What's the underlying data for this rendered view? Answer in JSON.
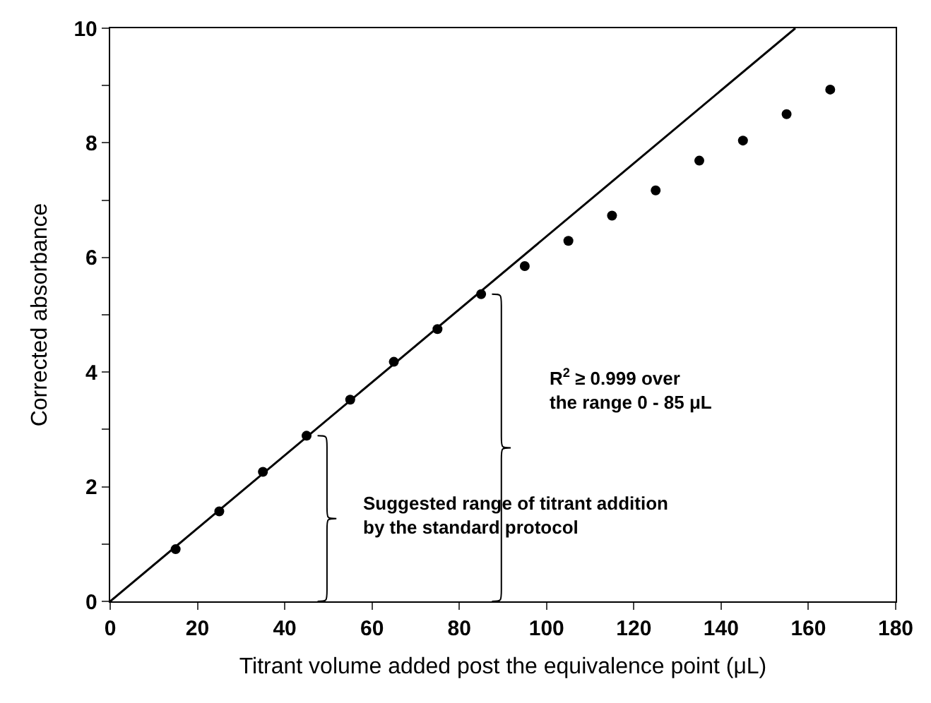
{
  "chart_data": {
    "type": "scatter",
    "xlabel": "Titrant volume added post the equivalence point (μL)",
    "ylabel": "Corrected absorbance",
    "xlim": [
      0,
      180
    ],
    "xticks": [
      0,
      20,
      40,
      60,
      80,
      100,
      120,
      140,
      160,
      180
    ],
    "ylim": [
      0,
      10
    ],
    "yticks": [
      0,
      {
        "value": 1,
        "label": null
      },
      2,
      {
        "value": 3,
        "label": null
      },
      4,
      {
        "value": 5,
        "label": null
      },
      6,
      {
        "value": 7,
        "label": null
      },
      8,
      {
        "value": 9,
        "label": null
      },
      10
    ],
    "grid": false,
    "legend": false,
    "series": [
      {
        "color": "#000000",
        "marker": "circle",
        "x": [
          15,
          25,
          35,
          45,
          55,
          65,
          75,
          85,
          95,
          105,
          115,
          125,
          135,
          145,
          155,
          165
        ],
        "values": [
          0.91,
          1.57,
          2.26,
          2.89,
          3.52,
          4.18,
          4.75,
          5.36,
          5.85,
          6.29,
          6.73,
          7.17,
          7.69,
          8.04,
          8.5,
          8.93
        ]
      },
      {
        "type": "line",
        "color": "#000000",
        "x": [
          0,
          157
        ],
        "values": [
          0,
          10
        ]
      }
    ],
    "annotations": [
      "Suggested range of titrant addition\nby the standard protocol",
      "R$^{2}$ ≥ 0.999 over\nthe range 0 - 85 μL"
    ]
  }
}
